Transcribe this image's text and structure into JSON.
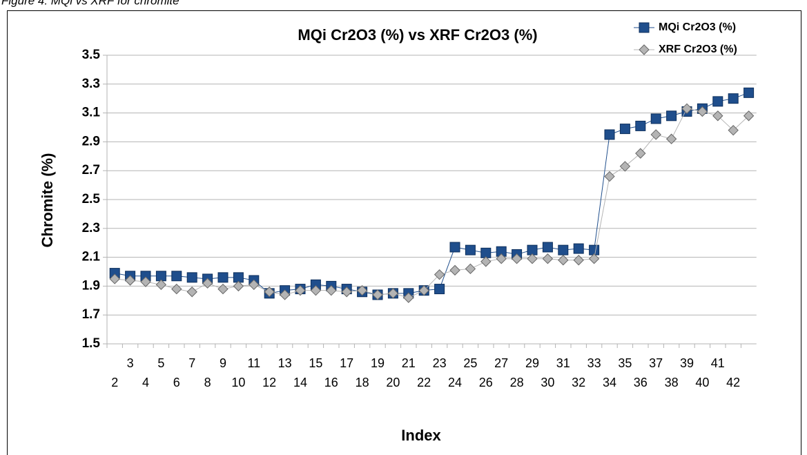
{
  "caption": "Figure 4: MQi vs XRF for chromite",
  "chart_data": {
    "type": "line",
    "title": "MQi Cr2O3 (%) vs XRF Cr2O3 (%)",
    "x_label": "Index",
    "y_label": "Chromite (%)",
    "categories": [
      2,
      3,
      4,
      5,
      6,
      7,
      8,
      9,
      10,
      11,
      12,
      13,
      14,
      15,
      16,
      17,
      18,
      19,
      20,
      21,
      22,
      23,
      24,
      25,
      26,
      27,
      28,
      29,
      30,
      31,
      32,
      33,
      34,
      35,
      36,
      37,
      38,
      39,
      40,
      41,
      42,
      null
    ],
    "series": [
      {
        "name": "MQi Cr2O3 (%)",
        "color": "#1f4e8c",
        "marker": "square",
        "values": [
          1.99,
          1.97,
          1.97,
          1.97,
          1.97,
          1.96,
          1.95,
          1.96,
          1.96,
          1.94,
          1.85,
          1.87,
          1.88,
          1.91,
          1.9,
          1.88,
          1.86,
          1.84,
          1.85,
          1.85,
          1.87,
          1.88,
          2.17,
          2.15,
          2.13,
          2.14,
          2.12,
          2.15,
          2.17,
          2.15,
          2.16,
          2.15,
          2.95,
          2.99,
          3.01,
          3.06,
          3.08,
          3.11,
          3.13,
          3.18,
          3.2,
          3.24
        ]
      },
      {
        "name": "XRF Cr2O3 (%)",
        "color": "#b4b4b4",
        "marker": "diamond",
        "values": [
          1.95,
          1.94,
          1.93,
          1.91,
          1.88,
          1.86,
          1.92,
          1.88,
          1.9,
          1.91,
          1.86,
          1.84,
          1.87,
          1.87,
          1.87,
          1.86,
          1.87,
          1.84,
          1.85,
          1.82,
          1.87,
          1.98,
          2.01,
          2.02,
          2.07,
          2.09,
          2.09,
          2.09,
          2.09,
          2.08,
          2.08,
          2.09,
          2.66,
          2.73,
          2.82,
          2.95,
          2.92,
          3.13,
          3.11,
          3.08,
          2.98,
          3.08
        ]
      }
    ],
    "ylim": [
      1.5,
      3.5
    ],
    "yticks": [
      1.5,
      1.7,
      1.9,
      2.1,
      2.3,
      2.5,
      2.7,
      2.9,
      3.1,
      3.3,
      3.5
    ],
    "grid": true,
    "legend": "upper right"
  }
}
